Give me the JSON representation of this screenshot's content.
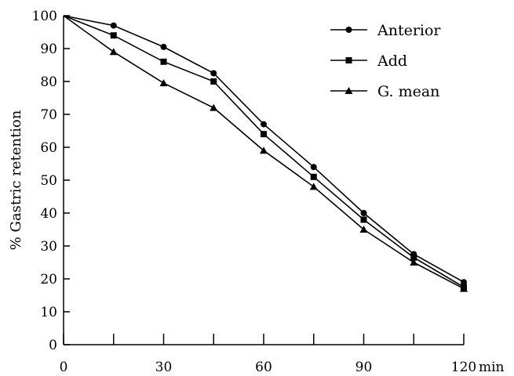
{
  "chart_data": {
    "type": "line",
    "title": "",
    "xlabel": "",
    "x_unit_label": "min",
    "ylabel": "% Gastric retention",
    "xlim": [
      0,
      120
    ],
    "ylim": [
      0,
      100
    ],
    "x_ticks": [
      0,
      15,
      30,
      45,
      60,
      75,
      90,
      105,
      120
    ],
    "x_tick_labels": [
      "0",
      "",
      "30",
      "",
      "60",
      "",
      "90",
      "",
      "120"
    ],
    "y_ticks": [
      0,
      10,
      20,
      30,
      40,
      50,
      60,
      70,
      80,
      90,
      100
    ],
    "grid": false,
    "legend_position": "top-right",
    "x": [
      0,
      15,
      30,
      45,
      60,
      75,
      90,
      105,
      120
    ],
    "series": [
      {
        "name": "Anterior",
        "marker": "circle",
        "values": [
          100,
          97,
          90.5,
          82.5,
          67,
          54,
          40,
          27.5,
          19
        ]
      },
      {
        "name": "Add",
        "marker": "square",
        "values": [
          100,
          94,
          86,
          80,
          64,
          51,
          38,
          26.5,
          17.5
        ]
      },
      {
        "name": "G. mean",
        "marker": "triangle",
        "values": [
          100,
          89,
          79.5,
          72,
          59,
          48,
          35,
          25,
          17
        ]
      }
    ]
  }
}
